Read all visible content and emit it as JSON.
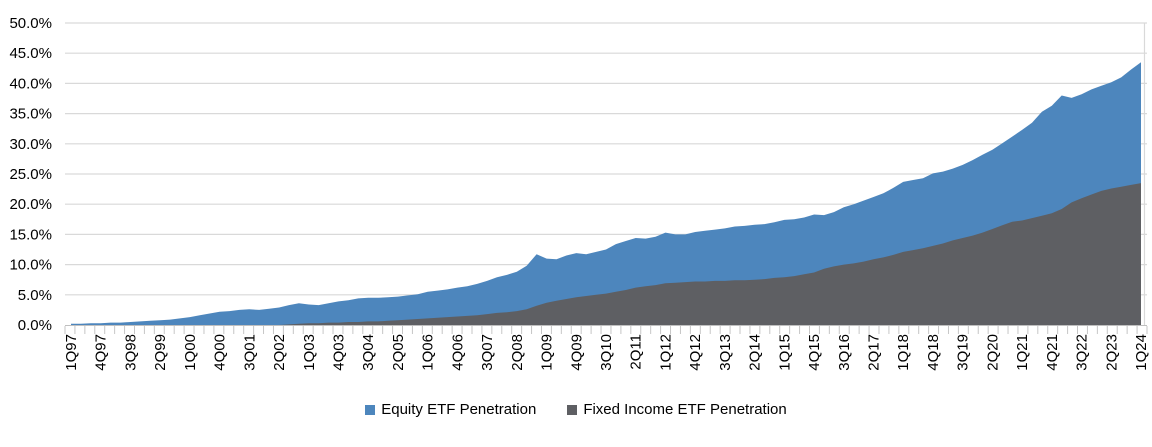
{
  "chart_data": {
    "type": "area",
    "title": "",
    "xlabel": "",
    "ylabel": "",
    "ylim": [
      0,
      50
    ],
    "y_tick_step": 5,
    "y_tick_labels": [
      "0.0%",
      "5.0%",
      "10.0%",
      "15.0%",
      "20.0%",
      "25.0%",
      "30.0%",
      "35.0%",
      "40.0%",
      "45.0%",
      "50.0%"
    ],
    "grid": "horizontal",
    "legend_position": "bottom",
    "x_label_every": 3,
    "x": [
      "1Q97",
      "2Q97",
      "3Q97",
      "4Q97",
      "1Q98",
      "2Q98",
      "3Q98",
      "4Q98",
      "1Q99",
      "2Q99",
      "3Q99",
      "4Q99",
      "1Q00",
      "2Q00",
      "3Q00",
      "4Q00",
      "1Q01",
      "2Q01",
      "3Q01",
      "4Q01",
      "1Q02",
      "2Q02",
      "3Q02",
      "4Q02",
      "1Q03",
      "2Q03",
      "3Q03",
      "4Q03",
      "1Q04",
      "2Q04",
      "3Q04",
      "4Q04",
      "1Q05",
      "2Q05",
      "3Q05",
      "4Q05",
      "1Q06",
      "2Q06",
      "3Q06",
      "4Q06",
      "1Q07",
      "2Q07",
      "3Q07",
      "4Q07",
      "1Q08",
      "2Q08",
      "3Q08",
      "4Q08",
      "1Q09",
      "2Q09",
      "3Q09",
      "4Q09",
      "1Q10",
      "2Q10",
      "3Q10",
      "4Q10",
      "1Q11",
      "2Q11",
      "3Q11",
      "4Q11",
      "1Q12",
      "2Q12",
      "3Q12",
      "4Q12",
      "1Q13",
      "2Q13",
      "3Q13",
      "4Q13",
      "1Q14",
      "2Q14",
      "3Q14",
      "4Q14",
      "1Q15",
      "2Q15",
      "3Q15",
      "4Q15",
      "1Q16",
      "2Q16",
      "3Q16",
      "4Q16",
      "1Q17",
      "2Q17",
      "3Q17",
      "4Q17",
      "1Q18",
      "2Q18",
      "3Q18",
      "4Q18",
      "1Q19",
      "2Q19",
      "3Q19",
      "4Q19",
      "1Q20",
      "2Q20",
      "3Q20",
      "4Q20",
      "1Q21",
      "2Q21",
      "3Q21",
      "4Q21",
      "1Q22",
      "2Q22",
      "3Q22",
      "4Q22",
      "1Q23",
      "2Q23",
      "3Q23",
      "4Q23",
      "1Q24"
    ],
    "series": [
      {
        "name": "Equity ETF Penetration",
        "color": "#4D86BD",
        "values": [
          0.2,
          0.2,
          0.3,
          0.3,
          0.4,
          0.4,
          0.5,
          0.6,
          0.7,
          0.8,
          0.9,
          1.1,
          1.3,
          1.6,
          1.9,
          2.2,
          2.3,
          2.5,
          2.6,
          2.5,
          2.7,
          2.9,
          3.3,
          3.6,
          3.4,
          3.3,
          3.6,
          3.9,
          4.1,
          4.4,
          4.5,
          4.5,
          4.6,
          4.7,
          4.9,
          5.1,
          5.5,
          5.7,
          5.9,
          6.2,
          6.4,
          6.8,
          7.3,
          7.9,
          8.3,
          8.8,
          9.8,
          11.7,
          11.0,
          10.9,
          11.5,
          11.9,
          11.7,
          12.1,
          12.5,
          13.4,
          13.9,
          14.4,
          14.3,
          14.6,
          15.3,
          15.0,
          15.0,
          15.4,
          15.6,
          15.8,
          16.0,
          16.3,
          16.4,
          16.6,
          16.7,
          17.0,
          17.4,
          17.5,
          17.8,
          18.3,
          18.2,
          18.7,
          19.5,
          20.0,
          20.6,
          21.2,
          21.8,
          22.7,
          23.7,
          24.0,
          24.3,
          25.1,
          25.4,
          25.9,
          26.5,
          27.3,
          28.2,
          29.0,
          30.1,
          31.2,
          32.3,
          33.5,
          35.3,
          36.3,
          38.0,
          37.6,
          38.2,
          39.0,
          39.6,
          40.2,
          41.0,
          42.3,
          43.5
        ]
      },
      {
        "name": "Fixed Income ETF Penetration",
        "color": "#5E5F63",
        "values": [
          0,
          0,
          0,
          0,
          0,
          0,
          0,
          0,
          0,
          0,
          0,
          0,
          0,
          0,
          0,
          0,
          0,
          0,
          0,
          0,
          0,
          0,
          0.1,
          0.2,
          0.3,
          0.3,
          0.4,
          0.4,
          0.5,
          0.5,
          0.6,
          0.6,
          0.7,
          0.8,
          0.9,
          1.0,
          1.1,
          1.2,
          1.3,
          1.4,
          1.5,
          1.6,
          1.8,
          2.0,
          2.1,
          2.3,
          2.6,
          3.2,
          3.7,
          4.0,
          4.3,
          4.6,
          4.8,
          5.0,
          5.2,
          5.5,
          5.8,
          6.2,
          6.4,
          6.6,
          6.9,
          7.0,
          7.1,
          7.2,
          7.2,
          7.3,
          7.3,
          7.4,
          7.4,
          7.5,
          7.6,
          7.8,
          7.9,
          8.1,
          8.4,
          8.7,
          9.3,
          9.7,
          10.0,
          10.2,
          10.5,
          10.9,
          11.2,
          11.6,
          12.1,
          12.4,
          12.7,
          13.1,
          13.5,
          14.0,
          14.4,
          14.8,
          15.3,
          15.9,
          16.5,
          17.1,
          17.3,
          17.7,
          18.1,
          18.5,
          19.2,
          20.3,
          21.0,
          21.6,
          22.2,
          22.6,
          22.9,
          23.2,
          23.5
        ]
      }
    ]
  }
}
